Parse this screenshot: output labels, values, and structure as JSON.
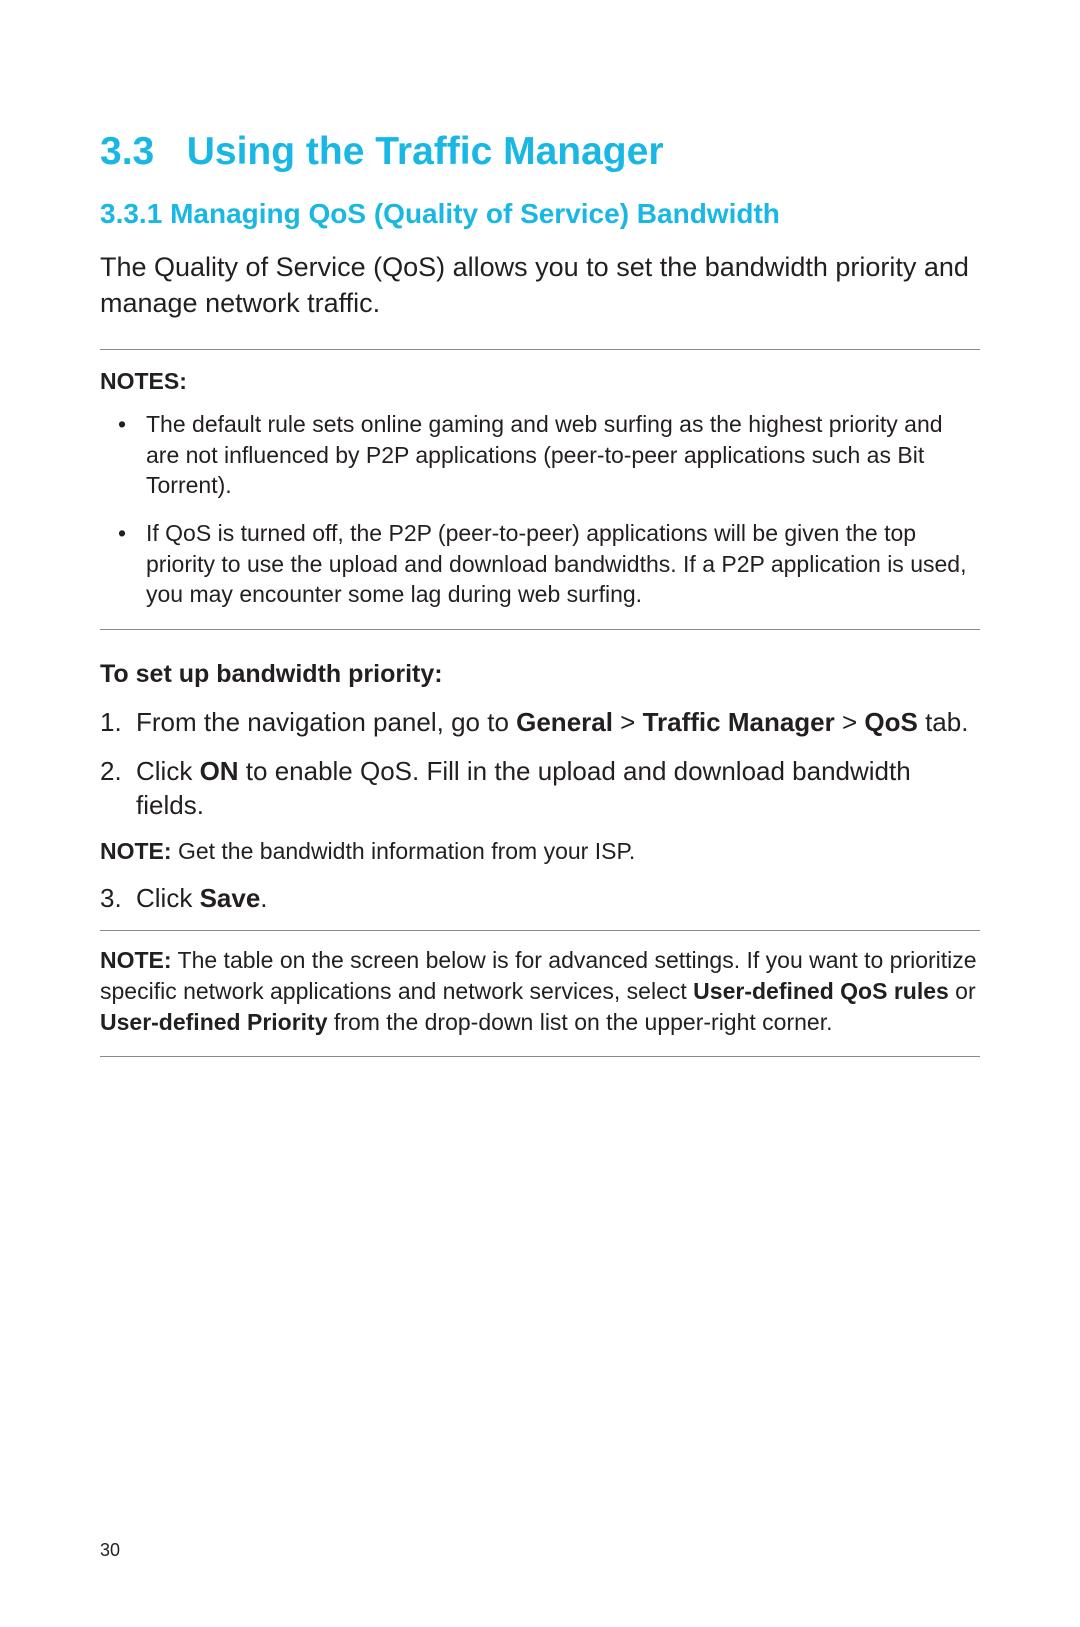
{
  "colors": {
    "heading": "#18b7e4",
    "text": "#231f20",
    "rule": "#8a8a8a",
    "background": "#ffffff"
  },
  "sizes": {
    "h1_pt": 39,
    "h2_pt": 28,
    "body_pt": 27,
    "notes_pt": 23,
    "steps_pt": 26,
    "pagenum_pt": 18
  },
  "section": {
    "number": "3.3",
    "title": "Using the Traffic Manager"
  },
  "subsection": {
    "number": "3.3.1",
    "title": "Managing QoS (Quality of Service) Bandwidth"
  },
  "intro": "The Quality of Service (QoS) allows you to set the bandwidth priority and manage network traffic.",
  "notes_label": "NOTES:",
  "notes": [
    "The default rule sets online gaming and web surfing as the highest priority and are not influenced by P2P applications (peer-to-peer applications such as Bit Torrent).",
    "If QoS is turned off, the P2P (peer-to-peer) applications will be given the top priority to use the upload and download bandwidths. If a P2P application is used, you may encounter some lag during web surfing."
  ],
  "steps_label": "To set up bandwidth priority:",
  "step1": {
    "pre": "From the navigation panel, go to ",
    "b1": "General",
    "sep1": " > ",
    "b2": "Traffic Manager",
    "sep2": " > ",
    "b3": "QoS",
    "post": " tab."
  },
  "step2": {
    "pre": "Click ",
    "b1": "ON",
    "post": " to enable QoS. Fill in the upload and download bandwidth fields."
  },
  "note_isp": {
    "label": "NOTE:",
    "text": " Get the bandwidth information from your ISP."
  },
  "step3": {
    "pre": "Click ",
    "b1": "Save",
    "post": "."
  },
  "note_table": {
    "label": "NOTE:",
    "pre": "  The table on the screen below is for advanced settings. If you want to prioritize specific network applications and network services, select ",
    "b1": "User-defined QoS rules",
    "mid": " or ",
    "b2": "User-defined Priority",
    "post": " from the drop-down list on the upper-right corner."
  },
  "page_number": "30"
}
